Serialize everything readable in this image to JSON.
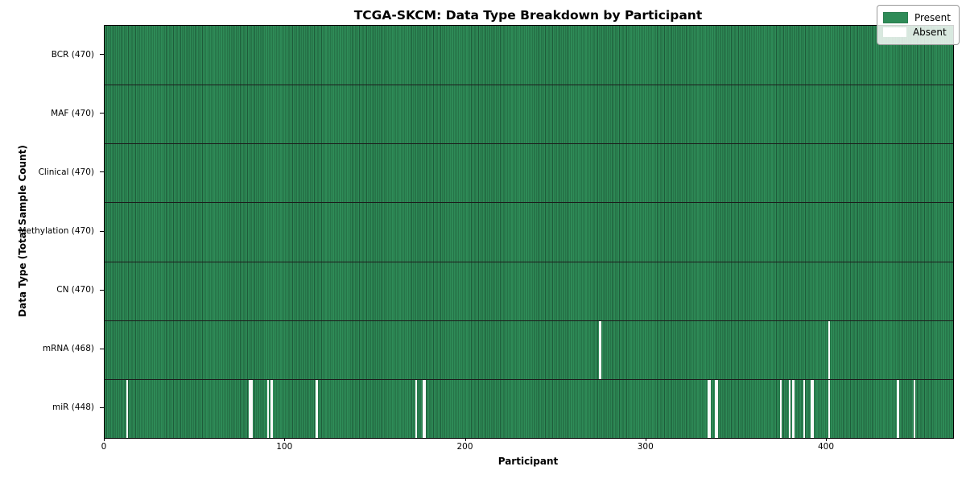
{
  "title": "TCGA-SKCM: Data Type Breakdown by Participant",
  "chart_data": {
    "type": "heatmap",
    "title": "TCGA-SKCM: Data Type Breakdown by Participant",
    "xlabel": "Participant",
    "ylabel": "Data Type (Total Sample Count)",
    "x_ticks": [
      0,
      100,
      200,
      300,
      400
    ],
    "x_range": [
      0,
      470
    ],
    "n_participants": 470,
    "grid": "horizontal row separators only",
    "legend": {
      "position": "upper right",
      "entries": [
        {
          "label": "Present",
          "color": "#2e8b57"
        },
        {
          "label": "Absent",
          "color": "#ffffff"
        }
      ]
    },
    "rows": [
      {
        "label": "BCR (470)",
        "data_type": "BCR",
        "present_count": 470,
        "absent_participants": []
      },
      {
        "label": "MAF (470)",
        "data_type": "MAF",
        "present_count": 470,
        "absent_participants": []
      },
      {
        "label": "Clinical (470)",
        "data_type": "Clinical",
        "present_count": 470,
        "absent_participants": []
      },
      {
        "label": "Methylation (470)",
        "data_type": "Methylation",
        "present_count": 470,
        "absent_participants": []
      },
      {
        "label": "CN (470)",
        "data_type": "CN",
        "present_count": 470,
        "absent_participants": []
      },
      {
        "label": "mRNA (468)",
        "data_type": "mRNA",
        "present_count": 468,
        "absent_participants": [
          274,
          401
        ]
      },
      {
        "label": "miR (448)",
        "data_type": "miR",
        "present_count": 448,
        "absent_participants": [
          12,
          80,
          81,
          90,
          92,
          117,
          172,
          176,
          177,
          334,
          335,
          338,
          339,
          374,
          379,
          381,
          387,
          391,
          392,
          401,
          439,
          448
        ]
      }
    ],
    "colors": {
      "present_fill": "#2e8b57",
      "bar_edge": "#1e5c3a",
      "absent_fill": "#fafafa",
      "row_separator": "#1c1c1c",
      "frame": "#000000",
      "legend_background": "#eaefe8"
    }
  }
}
